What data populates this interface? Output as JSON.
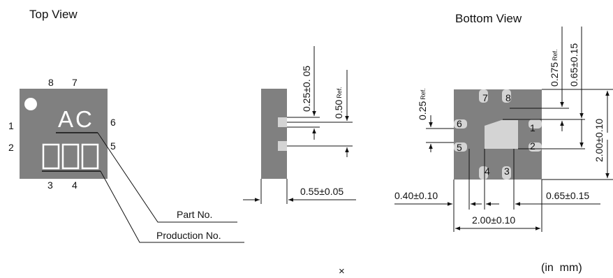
{
  "top_view": {
    "title": "Top View",
    "pins_top": [
      "8",
      "7"
    ],
    "pins_left": [
      "1",
      "2"
    ],
    "pins_right": [
      "6",
      "5"
    ],
    "pins_bottom": [
      "3",
      "4"
    ],
    "marking_text": "AC",
    "part_no_label": "Part No.",
    "production_no_label": "Production No."
  },
  "side_view": {
    "dim_pin_width": "0.25±0. 05",
    "dim_pin_pitch": "0.50",
    "dim_pin_pitch_ref": "Ref.",
    "dim_thickness": "0.55±0.05"
  },
  "bottom_view": {
    "title": "Bottom View",
    "pins": [
      "1",
      "2",
      "3",
      "4",
      "5",
      "6",
      "7",
      "8"
    ],
    "dim_pad_width": "0.25",
    "dim_pad_width_ref": "Ref.",
    "dim_pad_offset": "0.275",
    "dim_pad_offset_ref": "Ref.",
    "dim_pad_pos_top": "0.65±0.15",
    "dim_height_outer": "2.00±0.10",
    "dim_height_inner": "2.00±0.10",
    "dim_left_offset": "0.40±0.10",
    "dim_right_offset": "0.65±0.15",
    "dim_width": "2.00±0.10"
  },
  "footer": {
    "marker": "×",
    "unit_note": "(in  mm)"
  },
  "colors": {
    "body": "#808080",
    "pad": "#d4d4d4",
    "line": "#111111"
  }
}
